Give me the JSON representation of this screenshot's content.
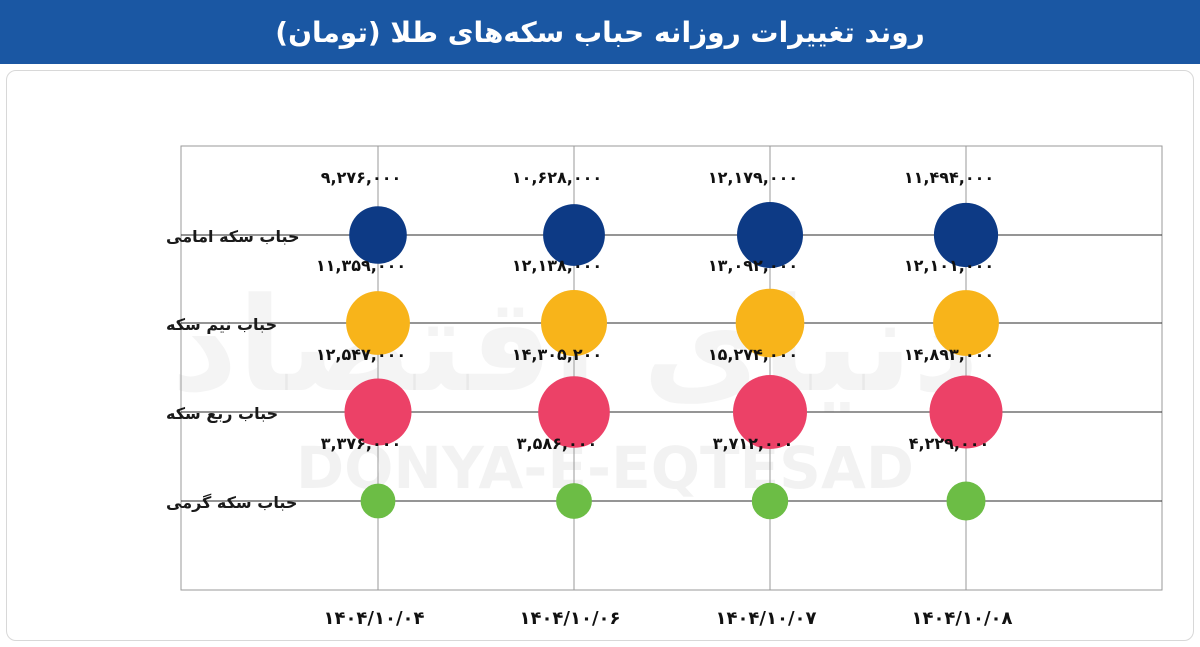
{
  "title": "روند تغییرات روزانه حباب سکه‌های طلا (تومان)",
  "watermark": {
    "latin": "DONYA-E-EQTESAD",
    "persian": "دنیای اقتصاد"
  },
  "colors": {
    "header": "#1a57a3",
    "emami": "#0d3a85",
    "nim": "#f8b41a",
    "rob": "#ec4167",
    "gerami": "#6cbd45",
    "grid": "#2b2b2b"
  },
  "chart_data": {
    "type": "bubble",
    "title": "روند تغییرات روزانه حباب سکه‌های طلا (تومان)",
    "x_categories": [
      "۱۴۰۴/۱۰/۰۴",
      "۱۴۰۴/۱۰/۰۶",
      "۱۴۰۴/۱۰/۰۷",
      "۱۴۰۴/۱۰/۰۸"
    ],
    "series": [
      {
        "name": "حباب سکه امامی",
        "color": "#0d3a85",
        "values": [
          9276000,
          10628000,
          12179000,
          11494000
        ],
        "labels": [
          "۹,۲۷۶,۰۰۰",
          "۱۰,۶۲۸,۰۰۰",
          "۱۲,۱۷۹,۰۰۰",
          "۱۱,۴۹۴,۰۰۰"
        ]
      },
      {
        "name": "حباب نیم سکه",
        "color": "#f8b41a",
        "values": [
          11359000,
          12138000,
          13092000,
          12101000
        ],
        "labels": [
          "۱۱,۳۵۹,۰۰۰",
          "۱۲,۱۳۸,۰۰۰",
          "۱۳,۰۹۲,۰۰۰",
          "۱۲,۱۰۱,۰۰۰"
        ]
      },
      {
        "name": "حباب ربع سکه",
        "color": "#ec4167",
        "values": [
          12547000,
          14305200,
          15274000,
          14893000
        ],
        "labels": [
          "۱۲,۵۴۷,۰۰۰",
          "۱۴,۳۰۵,۲۰۰",
          "۱۵,۲۷۴,۰۰۰",
          "۱۴,۸۹۳,۰۰۰"
        ]
      },
      {
        "name": "حباب سکه گرمی",
        "color": "#6cbd45",
        "values": [
          3376000,
          3586000,
          3712000,
          4229000
        ],
        "labels": [
          "۳,۳۷۶,۰۰۰",
          "۳,۵۸۶,۰۰۰",
          "۳,۷۱۲,۰۰۰",
          "۴,۲۲۹,۰۰۰"
        ]
      }
    ],
    "grid": true,
    "legend": "none"
  }
}
